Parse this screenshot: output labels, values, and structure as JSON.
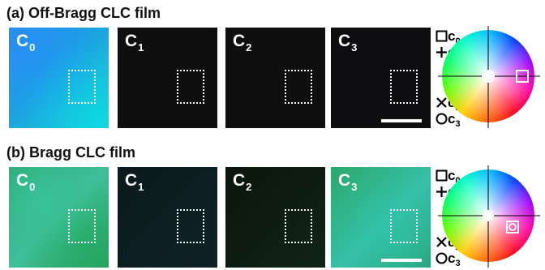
{
  "rows": [
    {
      "title": "(a) Off-Bragg CLC film",
      "panels": [
        {
          "label": "C",
          "sub": "0",
          "scalebar": false
        },
        {
          "label": "C",
          "sub": "1",
          "scalebar": false
        },
        {
          "label": "C",
          "sub": "2",
          "scalebar": false
        },
        {
          "label": "C",
          "sub": "3",
          "scalebar": true
        }
      ],
      "legend": {
        "sq_label": "c",
        "sq_sub": "0",
        "plus_label": "c",
        "plus_sub": "1",
        "x_label": "c",
        "x_sub": "2",
        "o_label": "c",
        "o_sub": "3"
      }
    },
    {
      "title": "(b) Bragg CLC film",
      "panels": [
        {
          "label": "C",
          "sub": "0",
          "scalebar": false
        },
        {
          "label": "C",
          "sub": "1",
          "scalebar": false
        },
        {
          "label": "C",
          "sub": "2",
          "scalebar": false
        },
        {
          "label": "C",
          "sub": "3",
          "scalebar": true
        }
      ],
      "legend": {
        "sq_label": "c",
        "sq_sub": "0",
        "plus_label": "c",
        "plus_sub": "1",
        "x_label": "c",
        "x_sub": "2",
        "o_label": "c",
        "o_sub": "3"
      }
    }
  ],
  "colors": {
    "panel_label": "#ffffff",
    "roi": "#ffffff",
    "background": "#ffffff"
  }
}
